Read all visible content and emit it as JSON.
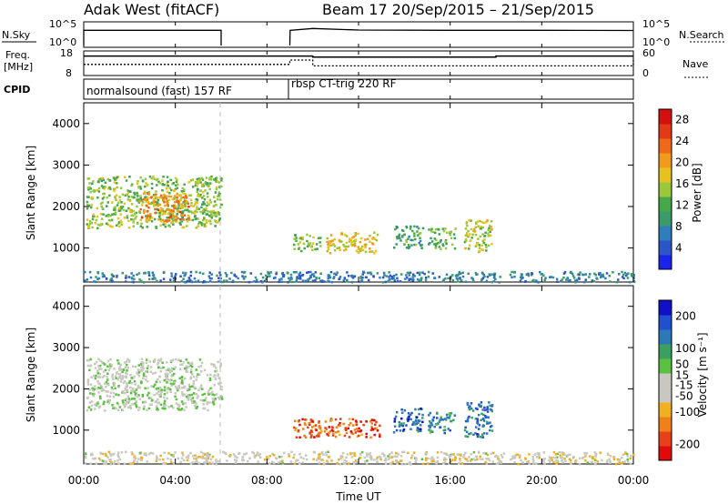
{
  "header": {
    "station": "Adak West (fitACF)",
    "beam_dates": "Beam 17  20/Sep/2015 – 21/Sep/2015"
  },
  "strip_labels": {
    "nsky": "N.Sky",
    "nsky_ticks": [
      "10^5",
      "10^0"
    ],
    "nsearch": "N.Search",
    "nsearch_ticks": [
      "10^5",
      "10^0"
    ],
    "freq_line1": "Freq.",
    "freq_line2": "[MHz]",
    "freq_ticks": [
      "18",
      "8"
    ],
    "nave": "Nave",
    "nave_ticks": [
      "60",
      "0"
    ],
    "cpid": "CPID"
  },
  "cpid_segments": [
    {
      "label": "normalsound (fast) 157 RF",
      "start_hour": 0,
      "end_hour": 6
    },
    {
      "label": "rbsp CT-trig 220 RF",
      "start_hour": 9,
      "end_hour": 24
    }
  ],
  "colors": {
    "power_scale": [
      "#1a24e8",
      "#2b56c8",
      "#2e7dbd",
      "#3a9a6a",
      "#46a848",
      "#9bc83a",
      "#e6c21e",
      "#f29a1a",
      "#ef6a18",
      "#e23a16",
      "#d40f0f"
    ],
    "velocity_scale": [
      "#1010c8",
      "#2050d0",
      "#2c78b8",
      "#3aa060",
      "#5cc040",
      "#c8c8c0",
      "#c8c8c0",
      "#f0b020",
      "#f08018",
      "#e84018",
      "#e00a0a"
    ],
    "gray_scatter": "#c8c8c0"
  },
  "chart_data": [
    {
      "type": "line",
      "title": "N.Sky / N.Search",
      "xlabel": "",
      "ylabel": "N.Sky",
      "y_scale": "log",
      "ylim": [
        1,
        100000
      ],
      "x_hours": [
        0,
        6,
        6.01,
        9,
        9.01,
        10,
        12,
        16,
        20,
        24
      ],
      "series": [
        {
          "name": "N.Sky",
          "values": [
            3000,
            3000,
            null,
            null,
            3000,
            8000,
            3500,
            3000,
            3000,
            2800
          ]
        },
        {
          "name": "N.Search",
          "values": [
            null,
            null,
            null,
            null,
            null,
            null,
            null,
            null,
            null,
            null
          ]
        }
      ]
    },
    {
      "type": "line",
      "title": "Freq. / Nave",
      "xlabel": "",
      "ylabel": "Freq. [MHz]",
      "ylim": [
        8,
        18
      ],
      "x_hours": [
        0,
        6,
        9,
        10,
        18,
        24
      ],
      "series": [
        {
          "name": "Freq.",
          "values": [
            16.5,
            16.5,
            16.5,
            16.0,
            16.5,
            16.5
          ]
        },
        {
          "name": "Nave",
          "values": [
            28,
            28,
            40,
            24,
            24,
            40
          ]
        }
      ]
    },
    {
      "type": "heatmap",
      "title": "Power",
      "xlabel": "",
      "ylabel": "Slant Range [km]",
      "xlim_hours": [
        0,
        24
      ],
      "x_tick_labels": [
        "00:00",
        "04:00",
        "08:00",
        "12:00",
        "16:00",
        "20:00",
        "00:00"
      ],
      "ylim": [
        180,
        4500
      ],
      "y_ticks": [
        1000,
        2000,
        3000,
        4000
      ],
      "colorbar_label": "Power [dB]",
      "colorbar_ticks": [
        4,
        8,
        12,
        16,
        20,
        24,
        28
      ],
      "colorbar_range": [
        0,
        30
      ],
      "scatter_regions": [
        {
          "x_hours": [
            0.1,
            6.0
          ],
          "range_km": [
            1500,
            2750
          ],
          "value": 14
        },
        {
          "x_hours": [
            2.4,
            4.6
          ],
          "range_km": [
            1650,
            2350
          ],
          "value": 22
        },
        {
          "x_hours": [
            9.1,
            10.3
          ],
          "range_km": [
            950,
            1350
          ],
          "value": 14
        },
        {
          "x_hours": [
            10.5,
            12.8
          ],
          "range_km": [
            900,
            1400
          ],
          "value": 18
        },
        {
          "x_hours": [
            13.5,
            14.8
          ],
          "range_km": [
            1000,
            1550
          ],
          "value": 10
        },
        {
          "x_hours": [
            15.0,
            16.2
          ],
          "range_km": [
            1000,
            1500
          ],
          "value": 12
        },
        {
          "x_hours": [
            16.6,
            17.8
          ],
          "range_km": [
            900,
            1700
          ],
          "value": 16
        },
        {
          "x_hours": [
            0.0,
            24.0
          ],
          "range_km": [
            200,
            450
          ],
          "value": 6
        }
      ]
    },
    {
      "type": "heatmap",
      "title": "Velocity",
      "xlabel": "Time UT",
      "ylabel": "Slant Range [km]",
      "xlim_hours": [
        0,
        24
      ],
      "x_tick_labels": [
        "00:00",
        "04:00",
        "08:00",
        "12:00",
        "16:00",
        "20:00",
        "00:00"
      ],
      "ylim": [
        180,
        4500
      ],
      "y_ticks": [
        1000,
        2000,
        3000,
        4000
      ],
      "colorbar_label": "Velocity [m s⁻¹]",
      "colorbar_ticks": [
        200,
        100,
        50,
        15,
        -15,
        -50,
        -100,
        -200
      ],
      "colorbar_range": [
        -250,
        250
      ],
      "scatter_regions": [
        {
          "x_hours": [
            0.1,
            6.0
          ],
          "range_km": [
            1500,
            2750
          ],
          "value": 0
        },
        {
          "x_hours": [
            9.1,
            12.9
          ],
          "range_km": [
            850,
            1300
          ],
          "value": -180
        },
        {
          "x_hours": [
            13.5,
            14.8
          ],
          "range_km": [
            950,
            1550
          ],
          "value": 180
        },
        {
          "x_hours": [
            15.0,
            16.2
          ],
          "range_km": [
            950,
            1450
          ],
          "value": 120
        },
        {
          "x_hours": [
            16.6,
            17.8
          ],
          "range_km": [
            850,
            1700
          ],
          "value": 160
        },
        {
          "x_hours": [
            0.0,
            24.0
          ],
          "range_km": [
            200,
            500
          ],
          "value": -40
        }
      ]
    }
  ]
}
